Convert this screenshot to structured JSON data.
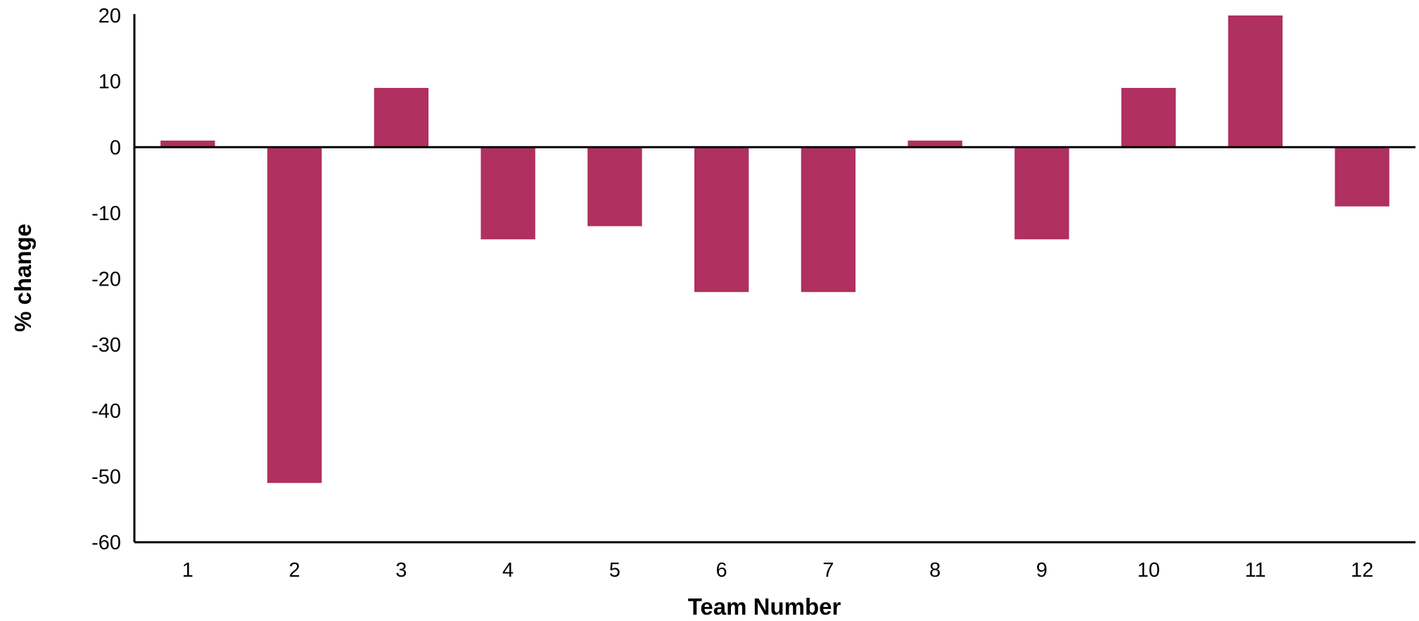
{
  "chart_data": {
    "type": "bar",
    "categories": [
      "1",
      "2",
      "3",
      "4",
      "5",
      "6",
      "7",
      "8",
      "9",
      "10",
      "11",
      "12"
    ],
    "values": [
      1,
      -51,
      9,
      -14,
      -12,
      -22,
      -22,
      1,
      -14,
      9,
      20,
      -9
    ],
    "xlabel": "Team Number",
    "ylabel": "% change",
    "ylim": [
      -60,
      20
    ],
    "yticks": [
      "20",
      "10",
      "0",
      "-10",
      "-20",
      "-30",
      "-40",
      "-50",
      "-60"
    ],
    "grid": false,
    "legend": "none",
    "bar_color": "#B03060"
  }
}
